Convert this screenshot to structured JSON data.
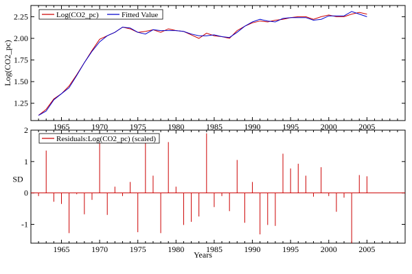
{
  "chart_data": [
    {
      "type": "line",
      "ylabel": "Log(CO2_pc)",
      "x": [
        1962,
        1963,
        1964,
        1965,
        1966,
        1967,
        1968,
        1969,
        1970,
        1971,
        1972,
        1973,
        1974,
        1975,
        1976,
        1977,
        1978,
        1979,
        1980,
        1981,
        1982,
        1983,
        1984,
        1985,
        1986,
        1987,
        1988,
        1989,
        1990,
        1991,
        1992,
        1993,
        1994,
        1995,
        1996,
        1997,
        1998,
        1999,
        2000,
        2001,
        2002,
        2003,
        2004,
        2005
      ],
      "xlim": [
        1961,
        2010
      ],
      "ylim": [
        1.05,
        2.38
      ],
      "xticks": [
        1965,
        1970,
        1975,
        1980,
        1985,
        1990,
        1995,
        2000,
        2005
      ],
      "yticks": [
        1.25,
        1.5,
        1.75,
        2.0,
        2.25
      ],
      "ytick_labels": [
        "1.25",
        "1.50",
        "1.75",
        "2.00",
        "2.25"
      ],
      "legend_position": "top-left",
      "series": [
        {
          "name": "Log(CO2_pc)",
          "color": "#cc0000",
          "values": [
            1.11,
            1.18,
            1.3,
            1.36,
            1.45,
            1.58,
            1.72,
            1.86,
            1.99,
            2.03,
            2.07,
            2.13,
            2.11,
            2.07,
            2.08,
            2.1,
            2.07,
            2.11,
            2.09,
            2.08,
            2.04,
            2.0,
            2.06,
            2.03,
            2.02,
            2.0,
            2.09,
            2.14,
            2.18,
            2.2,
            2.19,
            2.21,
            2.22,
            2.24,
            2.25,
            2.25,
            2.22,
            2.25,
            2.27,
            2.25,
            2.25,
            2.28,
            2.3,
            2.28
          ]
        },
        {
          "name": "Fitted Value",
          "color": "#0000cc",
          "values": [
            1.11,
            1.16,
            1.29,
            1.36,
            1.43,
            1.57,
            1.72,
            1.85,
            1.96,
            2.03,
            2.07,
            2.13,
            2.12,
            2.07,
            2.05,
            2.1,
            2.09,
            2.09,
            2.09,
            2.08,
            2.05,
            2.03,
            2.03,
            2.04,
            2.02,
            2.01,
            2.07,
            2.14,
            2.19,
            2.22,
            2.2,
            2.19,
            2.23,
            2.24,
            2.24,
            2.24,
            2.21,
            2.22,
            2.26,
            2.26,
            2.26,
            2.31,
            2.28,
            2.25
          ]
        }
      ]
    },
    {
      "type": "bar",
      "ylabel": "SD",
      "xlabel": "Years",
      "x": [
        1962,
        1963,
        1964,
        1965,
        1966,
        1967,
        1968,
        1969,
        1970,
        1971,
        1972,
        1973,
        1974,
        1975,
        1976,
        1977,
        1978,
        1979,
        1980,
        1981,
        1982,
        1983,
        1984,
        1985,
        1986,
        1987,
        1988,
        1989,
        1990,
        1991,
        1992,
        1993,
        1994,
        1995,
        1996,
        1997,
        1998,
        1999,
        2000,
        2001,
        2002,
        2003,
        2004,
        2005
      ],
      "xlim": [
        1961,
        2010
      ],
      "ylim": [
        -1.6,
        2.0
      ],
      "xticks": [
        1965,
        1970,
        1975,
        1980,
        1985,
        1990,
        1995,
        2000,
        2005
      ],
      "yticks": [
        -1,
        0,
        1,
        2
      ],
      "ytick_labels": [
        "-1",
        "0",
        "1",
        "2"
      ],
      "legend_position": "top-left",
      "series": [
        {
          "name": "Residuals:Log(CO2_pc) (scaled)",
          "color": "#cc0000",
          "values": [
            -0.1,
            1.35,
            -0.28,
            -0.35,
            -1.28,
            -0.04,
            -0.68,
            -0.22,
            1.75,
            -0.7,
            0.2,
            -0.1,
            0.35,
            -1.25,
            1.9,
            0.55,
            -1.28,
            1.62,
            0.2,
            -1.02,
            -0.92,
            -0.75,
            1.9,
            -0.45,
            -0.1,
            -0.58,
            1.05,
            -0.95,
            0.35,
            -1.32,
            -1.02,
            -1.05,
            1.25,
            0.78,
            0.93,
            0.55,
            -0.12,
            0.82,
            -0.1,
            -0.6,
            -0.15,
            -1.6,
            0.57,
            0.53
          ]
        }
      ]
    }
  ]
}
